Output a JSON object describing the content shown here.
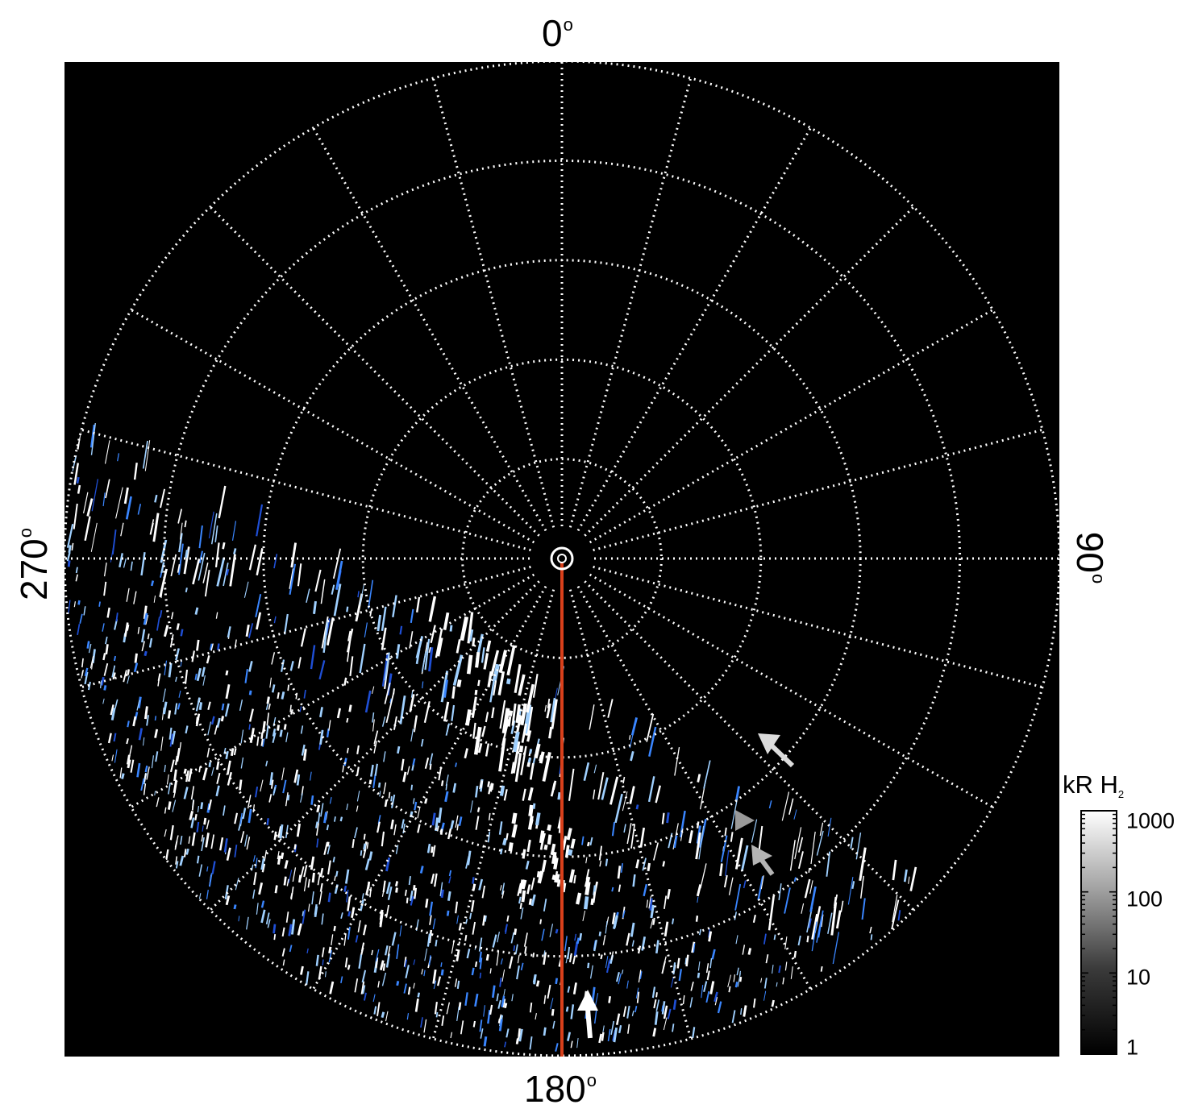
{
  "polar_plot": {
    "azimuth_labels": {
      "top": "0",
      "right": "90",
      "bottom": "180",
      "left": "270",
      "degree_symbol": "o"
    },
    "background_color": "#000000",
    "grid_color": "#ffffff",
    "meridian_line_color": "#d9401b",
    "emission_colors": [
      "#ffffff",
      "#9fd0ff",
      "#3a86ff",
      "#1f4fd6"
    ],
    "arrow_color": "#e6e6e6",
    "grid_rings": 5,
    "grid_spokes_deg_step": 15,
    "arrow_icons": [
      "arrow-up-icon",
      "arrow-upper-left-icon",
      "arrow-left-triangle-icon"
    ]
  },
  "colorbar": {
    "title_main": "kR H",
    "title_subscript": "2",
    "scale": "log",
    "range": [
      1,
      1000
    ],
    "ticks": [
      "1000",
      "100",
      "10",
      "1"
    ]
  }
}
